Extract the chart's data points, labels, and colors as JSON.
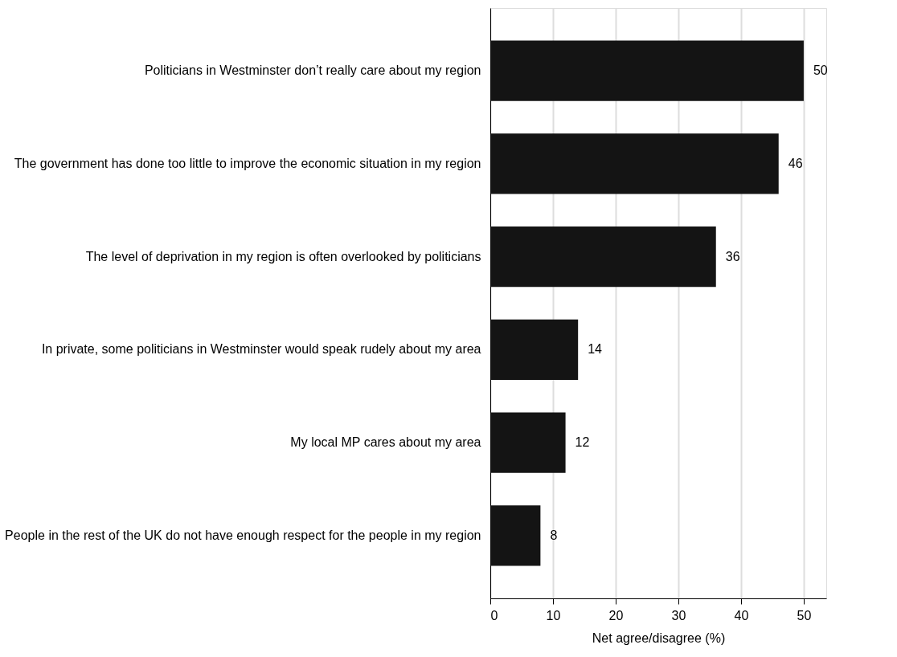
{
  "chart_data": {
    "type": "bar",
    "orientation": "horizontal",
    "categories": [
      "Politicians in Westminster don’t really care about my region",
      "The government has done too little to improve the economic situation in my region",
      "The level of deprivation in my region is often overlooked by politicians",
      "In private, some politicians in Westminster would speak rudely about my area",
      "My local MP cares about my area",
      "People in the rest of the UK do not have enough respect for the people in my region"
    ],
    "values": [
      50,
      46,
      36,
      14,
      12,
      8
    ],
    "color": "#141414",
    "xlabel": "Net agree/disagree (%)",
    "xlim": [
      0,
      53.6
    ],
    "xticks": [
      0,
      10,
      20,
      30,
      40,
      50
    ],
    "grid": "x",
    "data_labels": true
  }
}
